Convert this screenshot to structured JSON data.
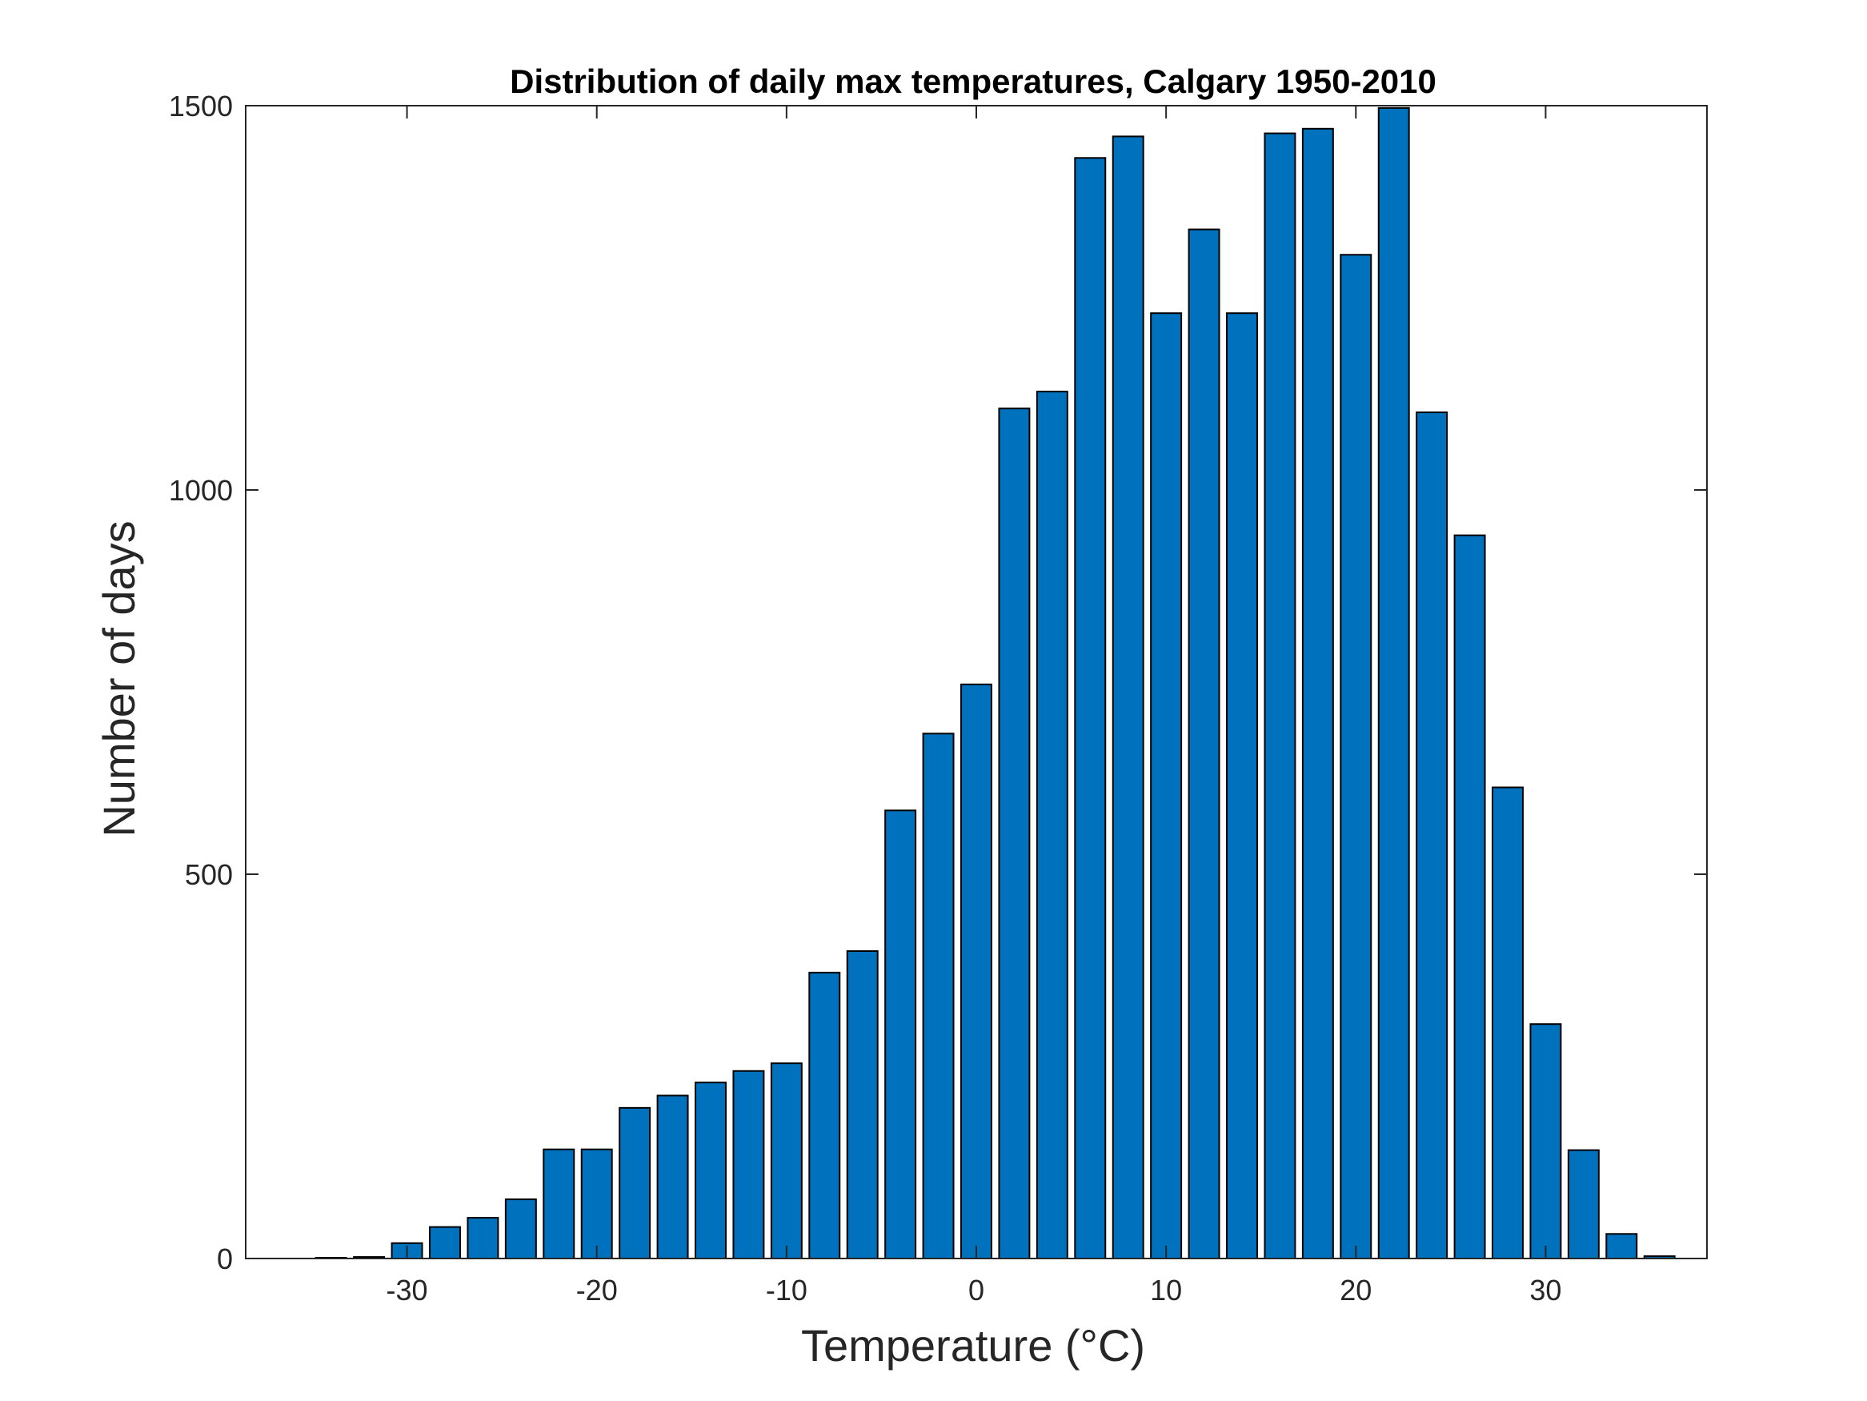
{
  "chart_data": {
    "type": "bar",
    "title": "Distribution of daily max temperatures, Calgary 1950-2010",
    "xlabel": "Temperature (°C)",
    "ylabel": "Number of days",
    "xlim": [
      -38.5,
      38.5
    ],
    "ylim": [
      0,
      1500
    ],
    "x_ticks": [
      -30,
      -20,
      -10,
      0,
      10,
      20,
      30
    ],
    "x_tick_labels": [
      "-30",
      "-20",
      "-10",
      "0",
      "10",
      "20",
      "30"
    ],
    "y_ticks": [
      0,
      500,
      1000,
      1500
    ],
    "y_tick_labels": [
      "0",
      "500",
      "1000",
      "1500"
    ],
    "x": [
      -36,
      -34,
      -32,
      -30,
      -28,
      -26,
      -24,
      -22,
      -20,
      -18,
      -16,
      -14,
      -12,
      -10,
      -8,
      -6,
      -4,
      -2,
      0,
      2,
      4,
      6,
      8,
      10,
      12,
      14,
      16,
      18,
      20,
      22,
      24,
      26,
      28,
      30,
      32,
      34,
      36
    ],
    "values": [
      0,
      1,
      2,
      20,
      41,
      53,
      77,
      142,
      142,
      196,
      212,
      229,
      244,
      254,
      372,
      400,
      583,
      683,
      747,
      1106,
      1128,
      1432,
      1460,
      1230,
      1339,
      1230,
      1464,
      1470,
      1306,
      1497,
      1101,
      941,
      613,
      305,
      141,
      32,
      3
    ],
    "grid": false,
    "legend": "none",
    "colors": {
      "bar_fill": "#0072BD",
      "bar_edge": "#000000",
      "axis": "#262626"
    }
  }
}
